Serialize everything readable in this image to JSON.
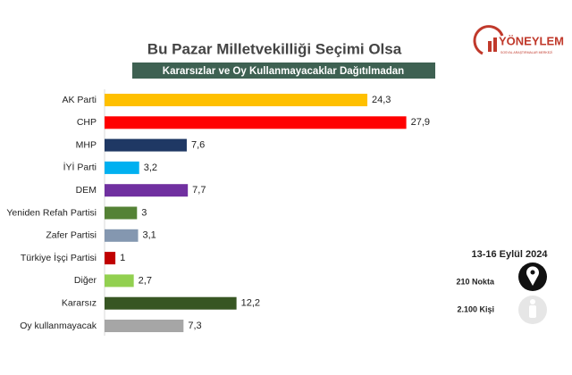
{
  "chart_data": {
    "type": "bar",
    "orientation": "horizontal",
    "title": "Bu Pazar Milletvekilliği Seçimi Olsa",
    "subtitle": "Kararsızlar ve Oy Kullanmayacaklar Dağıtılmadan",
    "categories": [
      "AK Parti",
      "CHP",
      "MHP",
      "İYİ Parti",
      "DEM",
      "Yeniden Refah Partisi",
      "Zafer Partisi",
      "Türkiye İşçi Partisi",
      "Diğer",
      "Kararsız",
      "Oy kullanmayacak"
    ],
    "values": [
      24.3,
      27.9,
      7.6,
      3.2,
      7.7,
      3,
      3.1,
      1,
      2.7,
      12.2,
      7.3
    ],
    "value_labels": [
      "24,3",
      "27,9",
      "7,6",
      "3,2",
      "7,7",
      "3",
      "3,1",
      "1",
      "2,7",
      "12,2",
      "7,3"
    ],
    "colors": [
      "#ffc000",
      "#ff0000",
      "#1f3864",
      "#00b0f0",
      "#7030a0",
      "#548235",
      "#8497b0",
      "#c00000",
      "#92d050",
      "#375623",
      "#a6a6a6"
    ]
  },
  "logo": {
    "name": "YÖNEYLEM",
    "tagline": "SOSYAL ARAŞTIRMALAR MERKEZİ"
  },
  "info": {
    "date": "13-16 Eylül 2024",
    "points": "210 Nokta",
    "people": "2.100 Kişi"
  }
}
